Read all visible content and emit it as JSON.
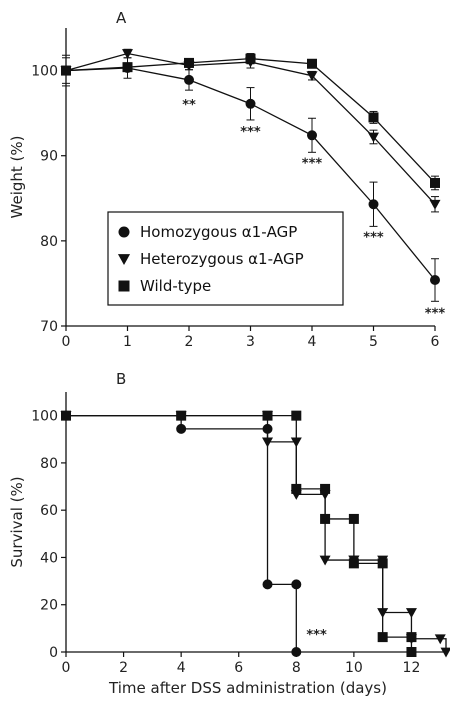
{
  "chart_data": [
    {
      "panel": "A",
      "type": "line",
      "ylabel": "Weight (%)",
      "xlim": [
        0,
        6
      ],
      "ylim": [
        70,
        105
      ],
      "x_ticks": [
        0,
        1,
        2,
        3,
        4,
        5,
        6
      ],
      "y_ticks": [
        70,
        80,
        90,
        100
      ],
      "legend": {
        "position": "bottom-left",
        "entries": [
          {
            "series": 0,
            "text": "Homozygous α1-AGP"
          },
          {
            "series": 1,
            "text": "Heterozygous α1-AGP"
          },
          {
            "series": 2,
            "text": "Wild-type"
          }
        ]
      },
      "series": [
        {
          "name": "Homozygous α1-AGP",
          "marker": "circle",
          "x": [
            0,
            1,
            2,
            3,
            4,
            5,
            6
          ],
          "y": [
            100,
            100.3,
            98.9,
            96.1,
            92.4,
            84.3,
            75.4
          ],
          "err": [
            1.5,
            1.2,
            1.2,
            1.9,
            2.0,
            2.6,
            2.5
          ]
        },
        {
          "name": "Heterozygous α1-AGP",
          "marker": "triangle-down",
          "x": [
            0,
            1,
            2,
            3,
            4,
            5,
            6
          ],
          "y": [
            100,
            102,
            100.6,
            101,
            99.4,
            92.2,
            84.3
          ],
          "err": [
            1.8,
            0.5,
            0.5,
            0.7,
            0.5,
            0.8,
            0.9
          ]
        },
        {
          "name": "Wild-type",
          "marker": "square",
          "x": [
            0,
            1,
            2,
            3,
            4,
            5,
            6
          ],
          "y": [
            100,
            100.4,
            100.9,
            101.4,
            100.8,
            94.5,
            86.8
          ],
          "err": [
            0.5,
            0.5,
            0.5,
            0.6,
            0.5,
            0.7,
            0.8
          ]
        }
      ],
      "annotations": [
        {
          "x": 2,
          "y": 96.1,
          "text": "**"
        },
        {
          "x": 3,
          "y": 92.9,
          "text": "***"
        },
        {
          "x": 4,
          "y": 89.2,
          "text": "***"
        },
        {
          "x": 5,
          "y": 80.5,
          "text": "***"
        },
        {
          "x": 6,
          "y": 71.6,
          "text": "***"
        }
      ]
    },
    {
      "panel": "B",
      "type": "line",
      "step": true,
      "xlabel": "Time after DSS administration (days)",
      "ylabel": "Survival (%)",
      "xlim": [
        0,
        13.2
      ],
      "ylim": [
        0,
        110
      ],
      "x_ticks": [
        0,
        2,
        4,
        6,
        8,
        10,
        12
      ],
      "y_ticks": [
        0,
        20,
        40,
        60,
        80,
        100
      ],
      "series": [
        {
          "name": "Homozygous α1-AGP",
          "marker": "circle",
          "x": [
            0,
            4,
            7,
            7,
            8,
            8
          ],
          "y": [
            100,
            94.4,
            94.4,
            28.6,
            28.6,
            0
          ]
        },
        {
          "name": "Heterozygous α1-AGP",
          "marker": "triangle-down",
          "x": [
            0,
            4,
            7,
            7,
            8,
            8,
            9,
            9,
            10,
            10,
            11,
            11,
            12,
            12,
            13,
            13.2
          ],
          "y": [
            100,
            100,
            100,
            88.9,
            88.9,
            66.7,
            66.7,
            38.9,
            38.9,
            38.9,
            38.9,
            16.7,
            16.7,
            5.6,
            5.6,
            0
          ]
        },
        {
          "name": "Wild-type",
          "marker": "square",
          "x": [
            0,
            4,
            7,
            8,
            8,
            9,
            9,
            10,
            10,
            11,
            11,
            12,
            12
          ],
          "y": [
            100,
            100,
            100,
            100,
            69,
            69,
            56.3,
            56.3,
            37.5,
            37.5,
            6.3,
            6.3,
            0
          ]
        }
      ],
      "annotations": [
        {
          "x": 8.35,
          "y": 3,
          "text": "***"
        }
      ]
    }
  ]
}
